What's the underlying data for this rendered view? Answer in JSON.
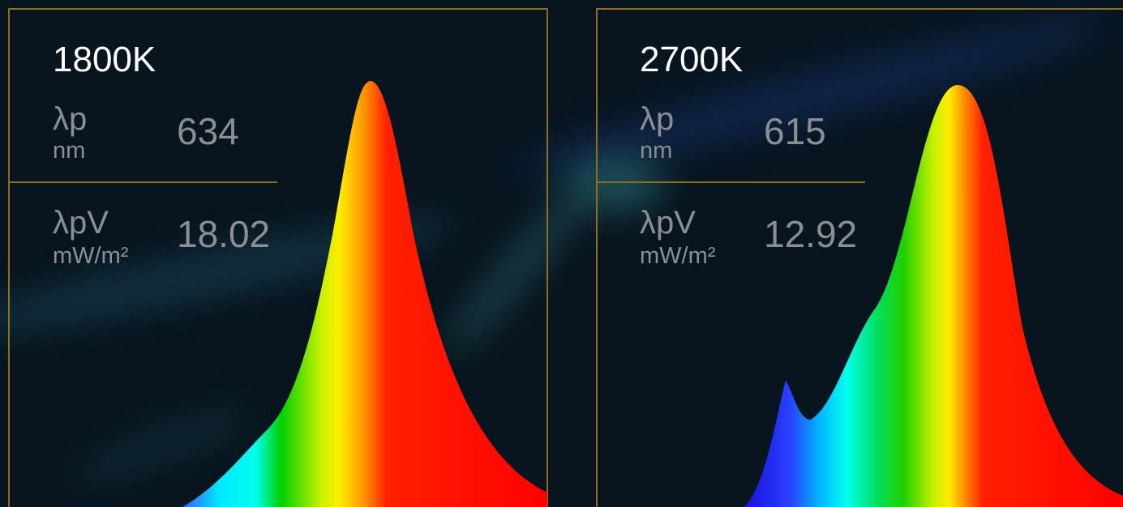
{
  "panels": [
    {
      "title": "1800K",
      "peak_label": "λp",
      "peak_unit": "nm",
      "peak_value": "634",
      "pv_label": "λpV",
      "pv_unit": "mW/m²",
      "pv_value": "18.02"
    },
    {
      "title": "2700K",
      "peak_label": "λp",
      "peak_unit": "nm",
      "peak_value": "615",
      "pv_label": "λpV",
      "pv_unit": "mW/m²",
      "pv_value": "12.92"
    }
  ]
}
